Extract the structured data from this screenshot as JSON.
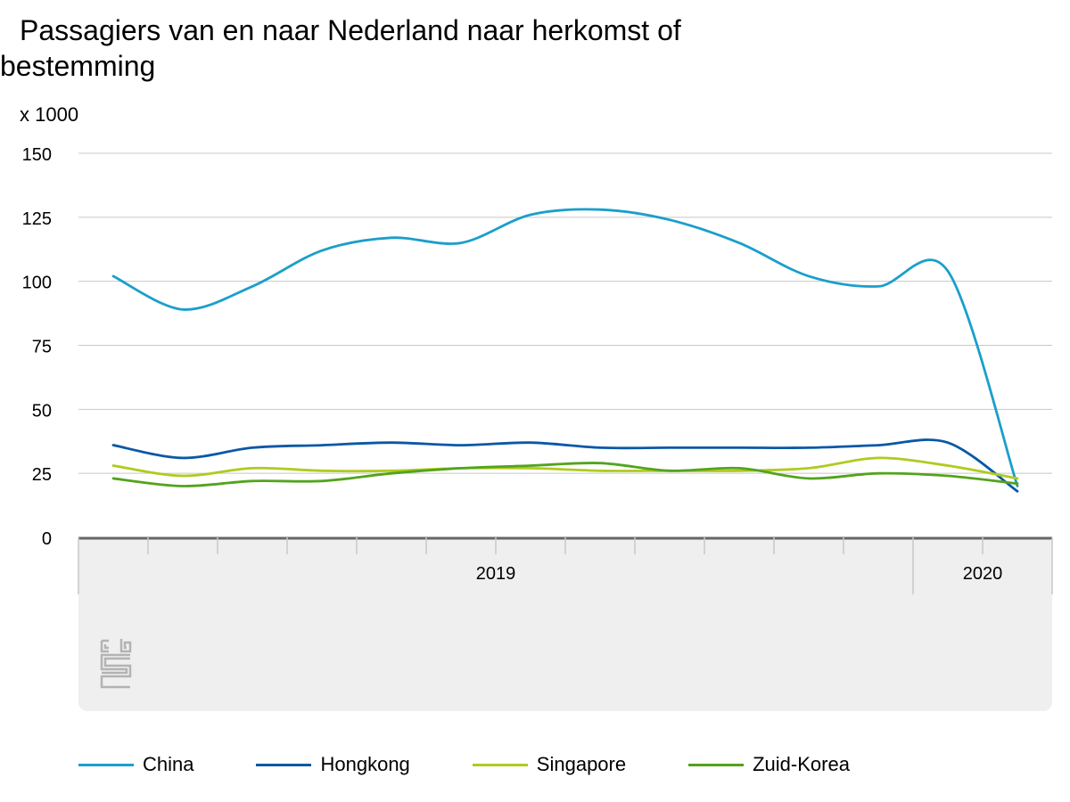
{
  "chart_data": {
    "type": "line",
    "title": "Passagiers van en naar Nederland naar herkomst of bestemming",
    "unit_label": "x 1000",
    "ylim": [
      0,
      150
    ],
    "yticks": [
      0,
      25,
      50,
      75,
      100,
      125,
      150
    ],
    "grid": true,
    "legend_position": "bottom",
    "x": [
      "2019-01",
      "2019-02",
      "2019-03",
      "2019-04",
      "2019-05",
      "2019-06",
      "2019-07",
      "2019-08",
      "2019-09",
      "2019-10",
      "2019-11",
      "2019-12",
      "2020-01",
      "2020-02"
    ],
    "year_labels": [
      {
        "label": "2019",
        "start_index": 0,
        "end_index": 11
      },
      {
        "label": "2020",
        "start_index": 12,
        "end_index": 13
      }
    ],
    "series": [
      {
        "name": "China",
        "color": "#1a9fcb",
        "values": [
          102,
          89,
          98,
          112,
          117,
          115,
          126,
          128,
          124,
          115,
          102,
          98,
          104,
          20
        ]
      },
      {
        "name": "Hongkong",
        "color": "#0a58a6",
        "values": [
          36,
          31,
          35,
          36,
          37,
          36,
          37,
          35,
          35,
          35,
          35,
          36,
          37,
          18
        ]
      },
      {
        "name": "Singapore",
        "color": "#afcb1e",
        "values": [
          28,
          24,
          27,
          26,
          26,
          27,
          27,
          26,
          26,
          26,
          27,
          31,
          28,
          23
        ]
      },
      {
        "name": "Zuid-Korea",
        "color": "#53a31d",
        "values": [
          23,
          20,
          22,
          22,
          25,
          27,
          28,
          29,
          26,
          27,
          23,
          25,
          24,
          21
        ]
      }
    ]
  },
  "logo": {
    "name": "cbs-logo",
    "text": "cbs"
  }
}
